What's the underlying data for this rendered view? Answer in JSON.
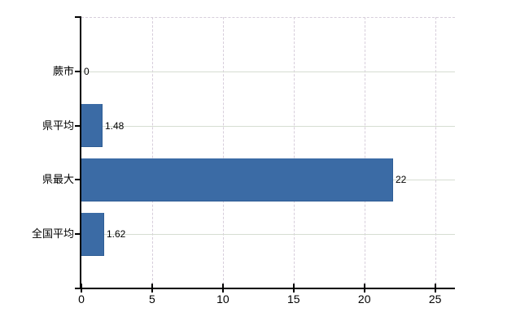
{
  "chart_data": {
    "type": "bar",
    "orientation": "horizontal",
    "title": "",
    "xlabel": "",
    "ylabel": "",
    "categories": [
      "蕨市",
      "県平均",
      "県最大",
      "全国平均"
    ],
    "values": [
      0,
      1.48,
      22,
      1.62
    ],
    "value_labels": [
      "0",
      "1.48",
      "22",
      "1.62"
    ],
    "x_ticks": [
      0,
      5,
      10,
      15,
      20,
      25
    ],
    "x_tick_labels": [
      "0",
      "5",
      "10",
      "15",
      "20",
      "25"
    ],
    "xlim": [
      0,
      26.4
    ],
    "grid": true,
    "legend": false,
    "colors": {
      "bar": "#3b6ba5",
      "bar_border": "#2e5d95",
      "axis": "#000000",
      "text": "#000000",
      "h_grid": "#d6ddd2",
      "v_grid": "#d7cedb",
      "top_border": "#d7cedb",
      "background": "#ffffff"
    }
  }
}
